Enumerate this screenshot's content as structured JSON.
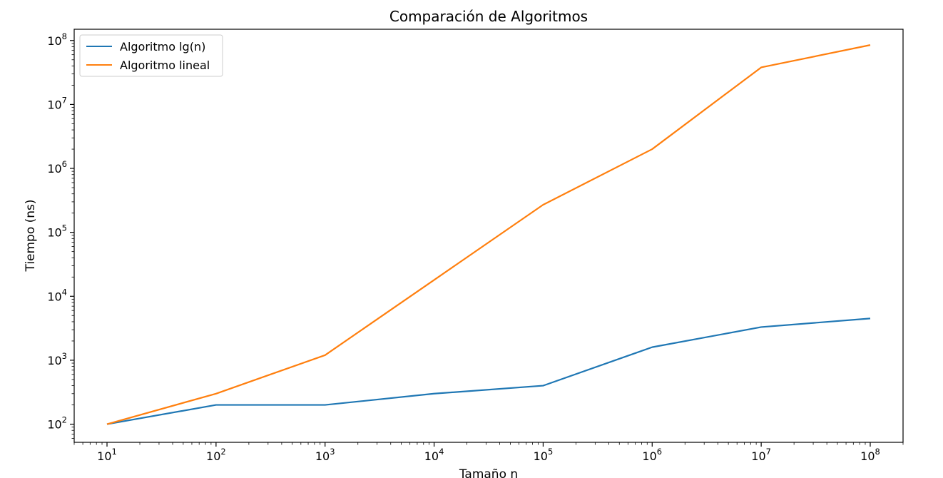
{
  "chart_data": {
    "type": "line",
    "title": "Comparación de Algoritmos",
    "xlabel": "Tamaño n",
    "ylabel": "Tiempo (ns)",
    "xscale": "log",
    "yscale": "log",
    "xlim": [
      5,
      200000000
    ],
    "ylim": [
      52,
      150000000
    ],
    "grid": false,
    "legend_position": "upper-left",
    "x_ticks": [
      {
        "base": "10",
        "exp": "1",
        "value": 10
      },
      {
        "base": "10",
        "exp": "2",
        "value": 100
      },
      {
        "base": "10",
        "exp": "3",
        "value": 1000
      },
      {
        "base": "10",
        "exp": "4",
        "value": 10000
      },
      {
        "base": "10",
        "exp": "5",
        "value": 100000
      },
      {
        "base": "10",
        "exp": "6",
        "value": 1000000
      },
      {
        "base": "10",
        "exp": "7",
        "value": 10000000
      },
      {
        "base": "10",
        "exp": "8",
        "value": 100000000
      }
    ],
    "y_ticks": [
      {
        "base": "10",
        "exp": "2",
        "value": 100
      },
      {
        "base": "10",
        "exp": "3",
        "value": 1000
      },
      {
        "base": "10",
        "exp": "4",
        "value": 10000
      },
      {
        "base": "10",
        "exp": "5",
        "value": 100000
      },
      {
        "base": "10",
        "exp": "6",
        "value": 1000000
      },
      {
        "base": "10",
        "exp": "7",
        "value": 10000000
      },
      {
        "base": "10",
        "exp": "8",
        "value": 100000000
      }
    ],
    "x": [
      10,
      100,
      1000,
      10000,
      100000,
      1000000,
      10000000,
      100000000
    ],
    "series": [
      {
        "name": "Algoritmo lg(n)",
        "color": "#1f77b4",
        "values": [
          100,
          200,
          200,
          300,
          400,
          1600,
          3300,
          4500
        ]
      },
      {
        "name": "Algoritmo lineal",
        "color": "#ff7f0e",
        "values": [
          100,
          300,
          1200,
          18000,
          270000,
          2000000,
          38000000,
          85000000
        ]
      }
    ]
  }
}
